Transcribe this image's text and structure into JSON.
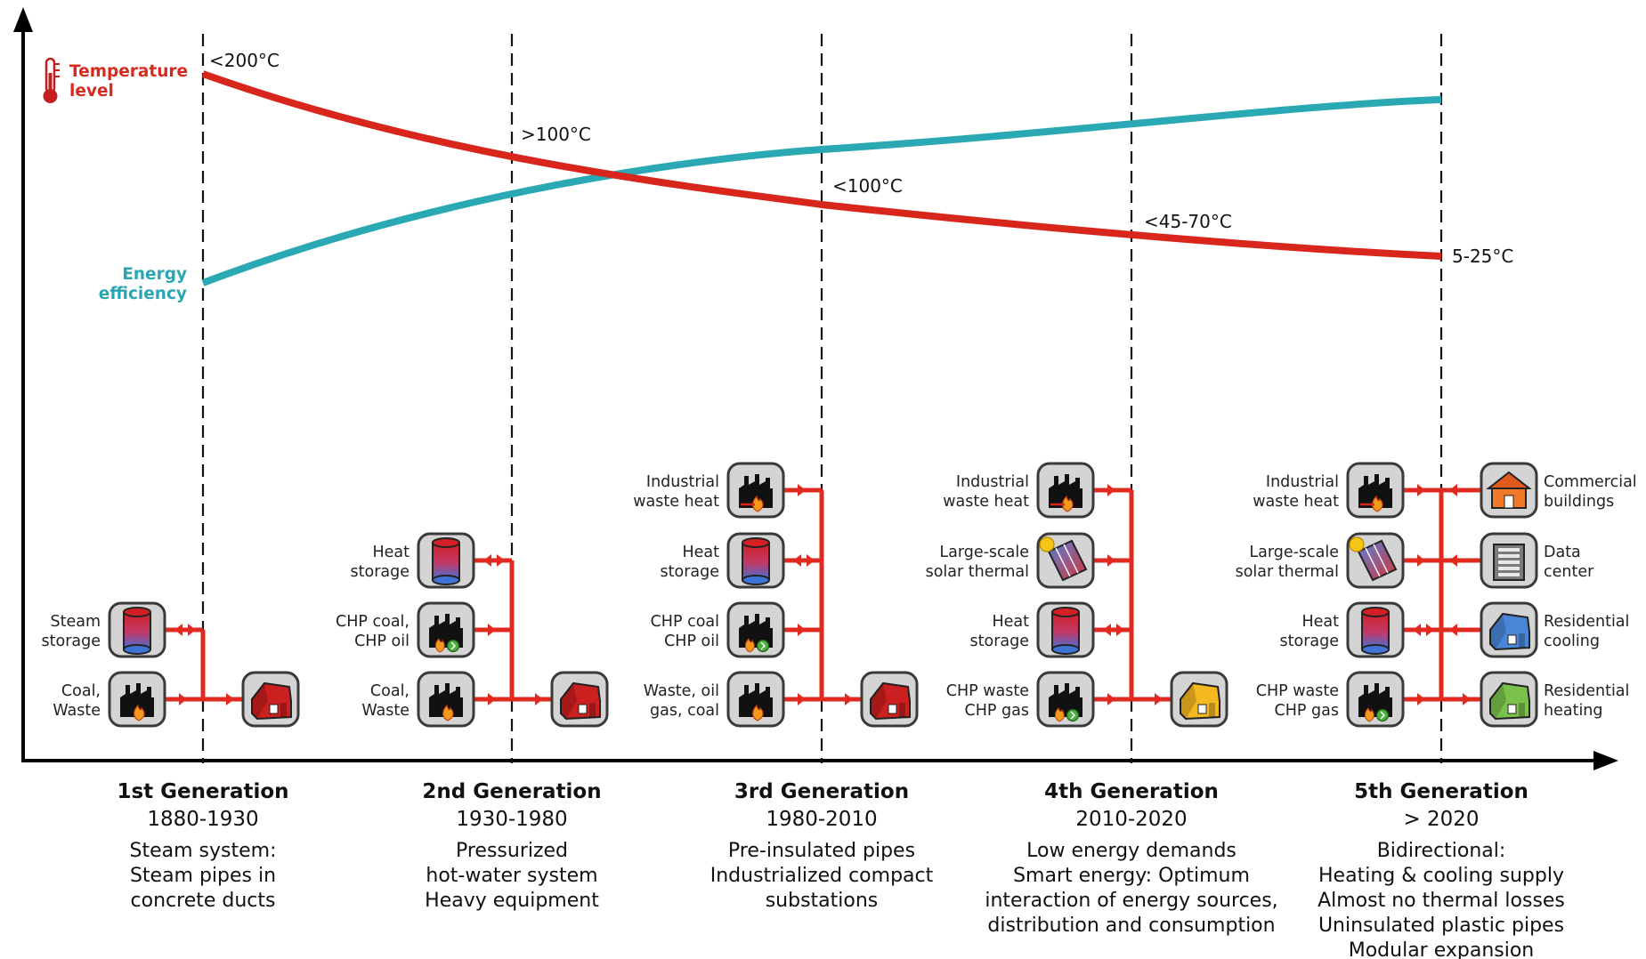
{
  "legend": {
    "temperature": [
      "Temperature",
      "level"
    ],
    "efficiency": [
      "Energy",
      "efficiency"
    ]
  },
  "colors": {
    "temperature": "#d8261c",
    "efficiency": "#2aa9b5",
    "pipe": "#e02a1f",
    "building_red": "#cc1f1f",
    "building_yellow": "#f6b81f",
    "building_orange": "#f07a2a",
    "building_blue": "#4a86d8",
    "building_green": "#7bc24b"
  },
  "temperature_labels": [
    "<200°C",
    ">100°C",
    "<100°C",
    "<45-70°C",
    "5-25°C"
  ],
  "generations": [
    {
      "name": "1st Generation",
      "years": "1880-1930",
      "description": [
        "Steam system:",
        "Steam pipes in",
        "concrete ducts"
      ],
      "sources": [
        {
          "label": [
            "Steam",
            "storage"
          ],
          "icon": "steam-storage-tank-icon"
        },
        {
          "label": [
            "Coal,",
            "Waste"
          ],
          "icon": "factory-fire-icon"
        }
      ],
      "consumers": [
        {
          "icon": "red-house-icon"
        }
      ]
    },
    {
      "name": "2nd Generation",
      "years": "1930-1980",
      "description": [
        "Pressurized",
        "hot-water system",
        "Heavy equipment"
      ],
      "sources": [
        {
          "label": [
            "Heat",
            "storage"
          ],
          "icon": "heat-storage-tank-icon"
        },
        {
          "label": [
            "CHP coal,",
            "CHP oil"
          ],
          "icon": "chp-factory-icon"
        },
        {
          "label": [
            "Coal,",
            "Waste"
          ],
          "icon": "factory-fire-icon"
        }
      ],
      "consumers": [
        {
          "icon": "red-house-icon"
        }
      ]
    },
    {
      "name": "3rd Generation",
      "years": "1980-2010",
      "description": [
        "Pre-insulated pipes",
        "Industrialized compact",
        "substations"
      ],
      "sources": [
        {
          "label": [
            "Industrial",
            "waste heat"
          ],
          "icon": "industrial-waste-heat-icon"
        },
        {
          "label": [
            "Heat",
            "storage"
          ],
          "icon": "heat-storage-tank-icon"
        },
        {
          "label": [
            "CHP coal",
            "CHP oil"
          ],
          "icon": "chp-factory-icon"
        },
        {
          "label": [
            "Waste, oil",
            "gas, coal"
          ],
          "icon": "factory-fire-icon"
        }
      ],
      "consumers": [
        {
          "icon": "red-house-icon"
        }
      ]
    },
    {
      "name": "4th Generation",
      "years": "2010-2020",
      "description": [
        "Low energy demands",
        "Smart energy: Optimum",
        "interaction of energy sources,",
        "distribution and consumption"
      ],
      "sources": [
        {
          "label": [
            "Industrial",
            "waste heat"
          ],
          "icon": "industrial-waste-heat-icon"
        },
        {
          "label": [
            "Large-scale",
            "solar thermal"
          ],
          "icon": "solar-panel-icon"
        },
        {
          "label": [
            "Heat",
            "storage"
          ],
          "icon": "heat-storage-tank-icon"
        },
        {
          "label": [
            "CHP waste",
            "CHP gas"
          ],
          "icon": "chp-factory-icon"
        }
      ],
      "consumers": [
        {
          "icon": "yellow-house-icon"
        }
      ]
    },
    {
      "name": "5th Generation",
      "years": "> 2020",
      "description": [
        "Bidirectional:",
        "Heating & cooling supply",
        "Almost no thermal losses",
        "Uninsulated plastic pipes",
        "Modular expansion"
      ],
      "sources": [
        {
          "label": [
            "Industrial",
            "waste heat"
          ],
          "icon": "industrial-waste-heat-icon"
        },
        {
          "label": [
            "Large-scale",
            "solar thermal"
          ],
          "icon": "solar-panel-icon"
        },
        {
          "label": [
            "Heat",
            "storage"
          ],
          "icon": "heat-storage-tank-icon"
        },
        {
          "label": [
            "CHP waste",
            "CHP gas"
          ],
          "icon": "chp-factory-icon"
        }
      ],
      "consumers": [
        {
          "label": [
            "Commercial",
            "buildings"
          ],
          "icon": "commercial-building-icon"
        },
        {
          "label": [
            "Data",
            "center"
          ],
          "icon": "data-center-icon"
        },
        {
          "label": [
            "Residential",
            "cooling"
          ],
          "icon": "residential-cooling-house-icon"
        },
        {
          "label": [
            "Residential",
            "heating"
          ],
          "icon": "residential-heating-house-icon"
        }
      ]
    }
  ]
}
